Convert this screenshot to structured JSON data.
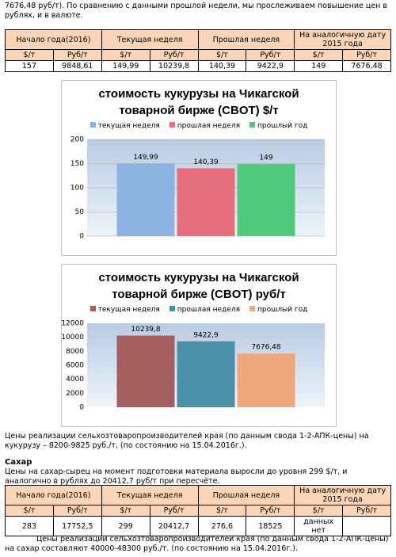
{
  "intro": "7676,48 руб/т). По сравнению с данными прошлой недели, мы прослеживаем повышение цен в рублях, и в валюте.",
  "table1": {
    "header": [
      "Начало года(2016)",
      "Текущая неделя",
      "Прошлая неделя",
      "На аналогичную дату 2015 года"
    ],
    "units": [
      "$/т",
      "Руб/т",
      "$/т",
      "Руб/т",
      "$/т",
      "Руб/т",
      "$/т",
      "Руб/т"
    ],
    "rows": [
      [
        "157",
        "9848,61",
        "149,99",
        "10239,8",
        "140,39",
        "9422,9",
        "149",
        "7676,48"
      ]
    ]
  },
  "chart_data": [
    {
      "type": "bar",
      "title": "стоимость кукурузы на Чикагской товарной бирже (CBOT) $/т",
      "categories": [
        null
      ],
      "series": [
        {
          "name": "текущая неделя",
          "color": "#8db3e2",
          "values": [
            149.99
          ],
          "value_labels": [
            "149,99"
          ]
        },
        {
          "name": "прошлая неделя",
          "color": "#e8707c",
          "values": [
            140.39
          ],
          "value_labels": [
            "140,39"
          ]
        },
        {
          "name": "прошлый год",
          "color": "#4fc97c",
          "values": [
            149
          ]
        }
      ],
      "ylim": [
        0,
        200
      ],
      "yticks": [
        0,
        50,
        100,
        150,
        200
      ],
      "grid": true
    },
    {
      "type": "bar",
      "title": "стоимость кукурузы на Чикагской товарной бирже (CBOT) руб/т",
      "categories": [
        null
      ],
      "series": [
        {
          "name": "текущая неделя",
          "color": "#a55e5e",
          "values": [
            10239.8
          ],
          "value_labels": [
            "10239,8"
          ]
        },
        {
          "name": "прошлая неделя",
          "color": "#4b8fa8",
          "values": [
            9422.9
          ],
          "value_labels": [
            "9422,9"
          ]
        },
        {
          "name": "прошлый год",
          "color": "#f0a77c",
          "values": [
            7676.48
          ],
          "value_labels": [
            "7676,48"
          ]
        }
      ],
      "ylim": [
        0,
        12000
      ],
      "yticks": [
        0,
        2000,
        4000,
        6000,
        8000,
        10000,
        12000
      ],
      "grid": false
    }
  ],
  "corn_note": "Цены реализации сельхозтоваропроизводителей края (по данным свода 1-2-АПК-цены) на кукурузу – 8200-9825 руб./т, (по состоянию на 15.04.2016г.).",
  "sugar_heading": "Сахар",
  "sugar_text": "Цены на сахар-сырец на момент подготовки материала выросли до уровня 299 $/т, и аналогично в рублях до 20412,7 руб/т при пересчёте.",
  "table2": {
    "header": [
      "Начало года(2016)",
      "Текущая неделя",
      "Прошлая неделя",
      "На аналогичную дату 2015 года"
    ],
    "units": [
      "$/т",
      "Руб/т",
      "$/т",
      "Руб/т",
      "$/т",
      "Руб/т",
      "$/т",
      "Руб/т"
    ],
    "rows": [
      [
        "283",
        "17752,5",
        "299",
        "20412,7",
        "276,6",
        "18525",
        "данных нет"
      ]
    ]
  },
  "sugar_note": "Цены реализации сельхозтоваропроизводителей края (по данным свода 1-2-АПК-цены) на сахар составляют 40000-48300 руб./т. (по состоянию на 15.04.2016г.)."
}
